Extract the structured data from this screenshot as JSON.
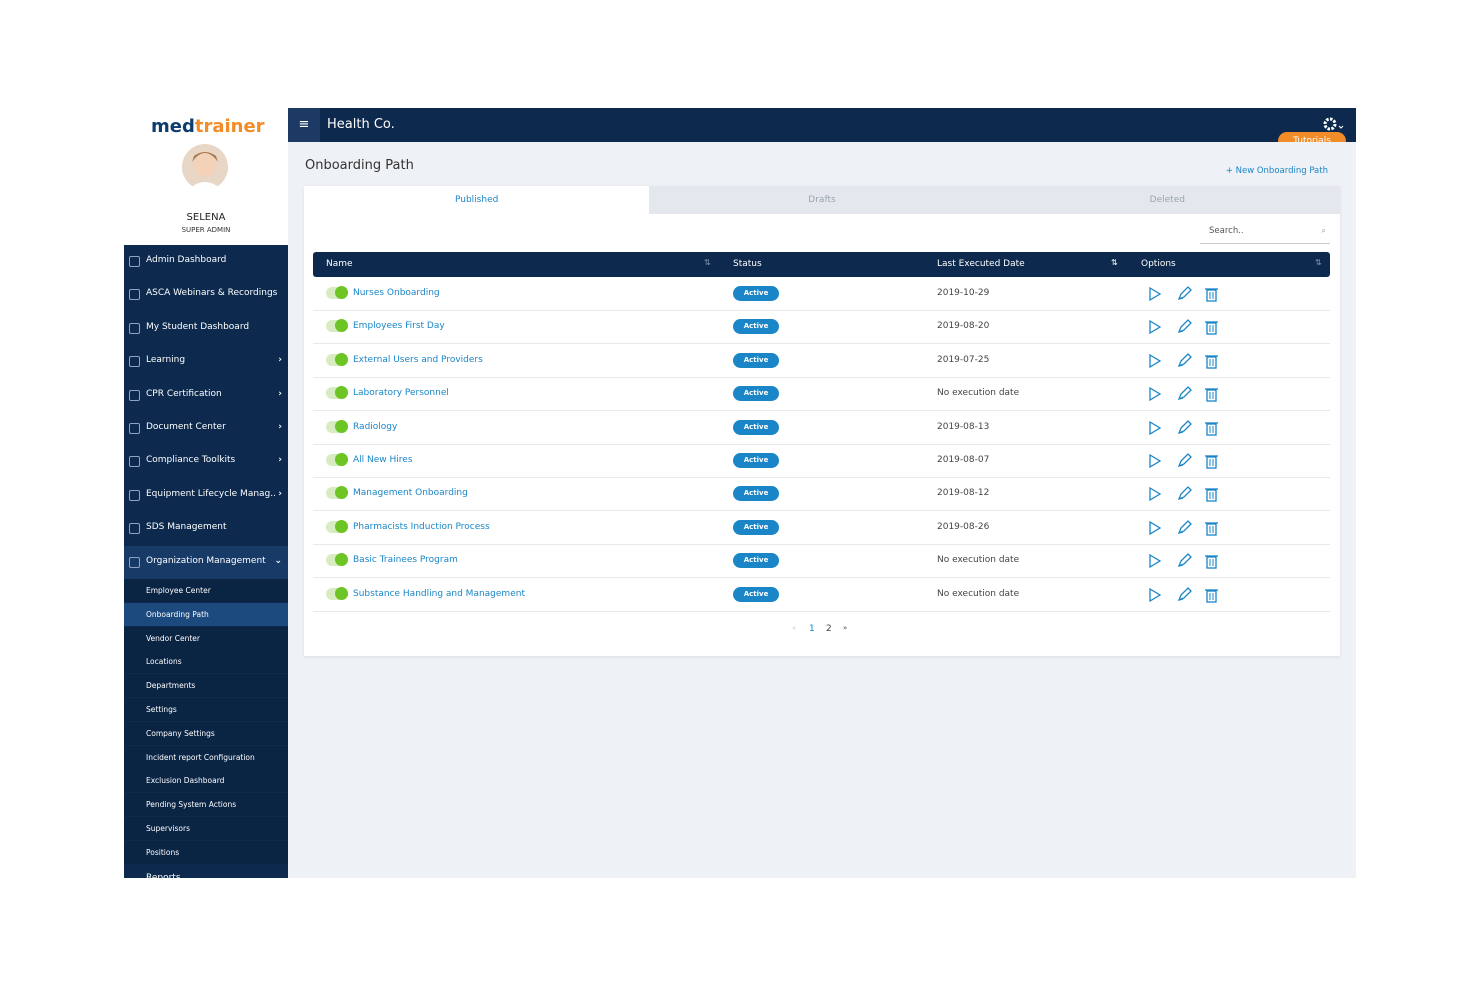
{
  "sidebar": {
    "logo": [
      "med",
      "trainer"
    ],
    "user": {
      "name": "SELENA",
      "role": "SUPER ADMIN"
    },
    "menu": [
      "Admin Dashboard",
      "ASCA Webinars & Recordings",
      "My Student Dashboard",
      "Learning",
      "CPR Certification",
      "Document Center",
      "Compliance Toolkits",
      "Equipment Lifecycle Manag..",
      "SDS Management",
      "Organization Management"
    ],
    "submenu": [
      "Employee Center",
      "Onboarding Path",
      "Vendor Center",
      "Locations",
      "Departments",
      "Settings",
      "Company Settings",
      "Incident report Configuration",
      "Exclusion Dashboard",
      "Pending System Actions",
      "Supervisors",
      "Positions"
    ],
    "cut_item": "Reports"
  },
  "header": {
    "company": "Health Co.",
    "tutorials": "Tutorials"
  },
  "page": {
    "title": "Onboarding Path",
    "new_button": "+ New Onboarding Path",
    "tabs": [
      "Published",
      "Drafts",
      "Deleted"
    ],
    "search": "Search..",
    "table": {
      "columns": [
        "Name",
        "Status",
        "Last Executed Date",
        "Options"
      ],
      "rows": [
        [
          "Nurses Onboarding",
          "Active",
          "2019-10-29"
        ],
        [
          "Employees First Day",
          "Active",
          "2019-08-20"
        ],
        [
          "External Users and Providers",
          "Active",
          "2019-07-25"
        ],
        [
          "Laboratory Personnel",
          "Active",
          "No execution date"
        ],
        [
          "Radiology",
          "Active",
          "2019-08-13"
        ],
        [
          "All New Hires",
          "Active",
          "2019-08-07"
        ],
        [
          "Management Onboarding",
          "Active",
          "2019-08-12"
        ],
        [
          "Pharmacists Induction Process",
          "Active",
          "2019-08-26"
        ],
        [
          "Basic Trainees Program",
          "Active",
          "No execution date"
        ],
        [
          "Substance Handling and Management",
          "Active",
          "No execution date"
        ]
      ]
    },
    "pagination": [
      "«",
      "1",
      "2",
      "»"
    ]
  }
}
